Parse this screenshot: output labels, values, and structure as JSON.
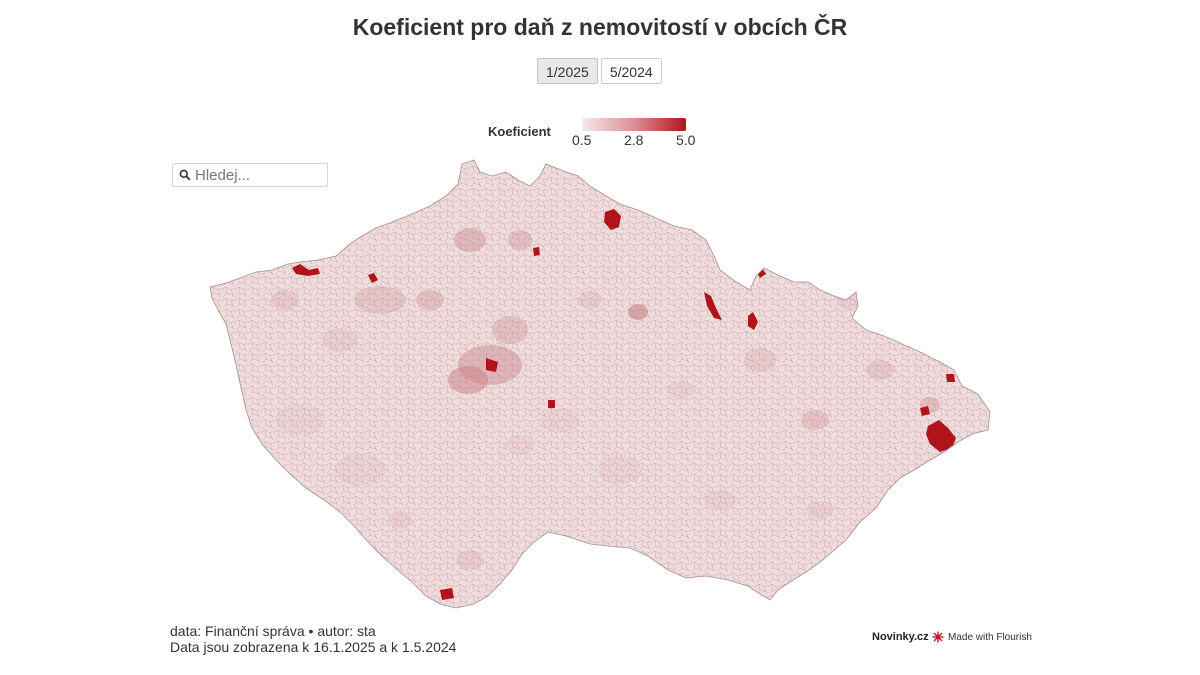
{
  "title": "Koeficient pro daň z nemovitostí v obcích ČR",
  "tabs": [
    {
      "label": "1/2025",
      "active": true
    },
    {
      "label": "5/2024",
      "active": false
    }
  ],
  "legend": {
    "title": "Koeficient",
    "ticks": [
      "0.5",
      "2.8",
      "5.0"
    ],
    "color_low": "#f7e9e9",
    "color_mid": "#dc8f95",
    "color_high": "#b0141b"
  },
  "search": {
    "placeholder": "Hledej..."
  },
  "map": {
    "region": "Česká republika",
    "base_color": "#f1dcdc",
    "border_color": "#a58e90",
    "highlight_color": "#b0141b"
  },
  "footer": {
    "line1": "data: Finanční správa • autor: sta",
    "line2": "Data jsou zobrazena k 16.1.2025 a k 1.5.2024"
  },
  "branding": {
    "publisher_prefix": "Novinky",
    "publisher_suffix": ".cz",
    "flourish": "Made with Flourish"
  }
}
